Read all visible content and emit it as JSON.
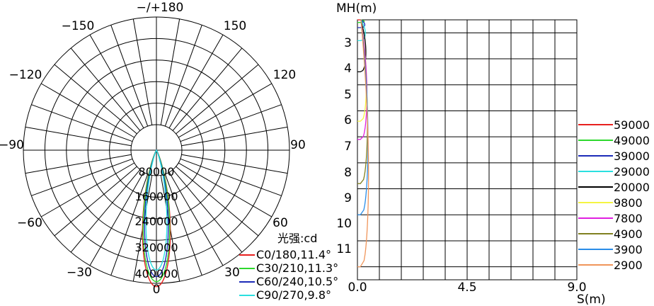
{
  "chart_data": [
    {
      "type": "polar",
      "angle_labels": {
        "top": "−/+180",
        "n150_left": "−150",
        "n150_right": "150",
        "n120_left": "−120",
        "n120_right": "120",
        "n90_left": "−90",
        "n90_right": "90",
        "n60_left": "−60",
        "n60_right": "60",
        "n30_left": "−30",
        "n30_right": "30",
        "bottom": "0"
      },
      "radial_ticks": [
        80000,
        160000,
        240000,
        320000,
        400000
      ],
      "radial_tick_labels": [
        "80000",
        "160000",
        "240000",
        "320000",
        "400000"
      ],
      "rmax": 400000,
      "unit_label": "光强:cd",
      "series": [
        {
          "name": "C0/180,11.4°",
          "color": "#e8201e",
          "peak": 410000,
          "half_angle": 11.4
        },
        {
          "name": "C30/210,11.3°",
          "color": "#2ed82e",
          "peak": 395000,
          "half_angle": 11.3
        },
        {
          "name": "C60/240,10.5°",
          "color": "#1c2bb8",
          "peak": 380000,
          "half_angle": 10.5
        },
        {
          "name": "C90/270,9.8°",
          "color": "#2be0e0",
          "peak": 360000,
          "half_angle": 9.8
        }
      ]
    },
    {
      "type": "isolux",
      "ylabel": "MH(m)",
      "xlabel": "S(m)",
      "x_ticks": [
        "0.0",
        "4.5",
        "9.0"
      ],
      "xlim": [
        0,
        9
      ],
      "y_ticks": [
        "3",
        "4",
        "5",
        "6",
        "7",
        "8",
        "9",
        "10",
        "11"
      ],
      "ylim": [
        2.5,
        12.5
      ],
      "levels": [
        {
          "value": "59000",
          "color": "#e8201e",
          "tip": 2.5
        },
        {
          "value": "49000",
          "color": "#2ed82e",
          "tip": 2.6
        },
        {
          "value": "39000",
          "color": "#1c2bb8",
          "tip": 2.8
        },
        {
          "value": "29000",
          "color": "#2be0e0",
          "tip": 3.3
        },
        {
          "value": "20000",
          "color": "#000000",
          "tip": 4.5
        },
        {
          "value": "9800",
          "color": "#f5f542",
          "tip": 6.4
        },
        {
          "value": "7800",
          "color": "#e020e0",
          "tip": 7.1
        },
        {
          "value": "4900",
          "color": "#808020",
          "tip": 8.8
        },
        {
          "value": "3900",
          "color": "#2a8de8",
          "tip": 10.0
        },
        {
          "value": "2900",
          "color": "#f0955a",
          "tip": 12.0
        }
      ]
    }
  ]
}
